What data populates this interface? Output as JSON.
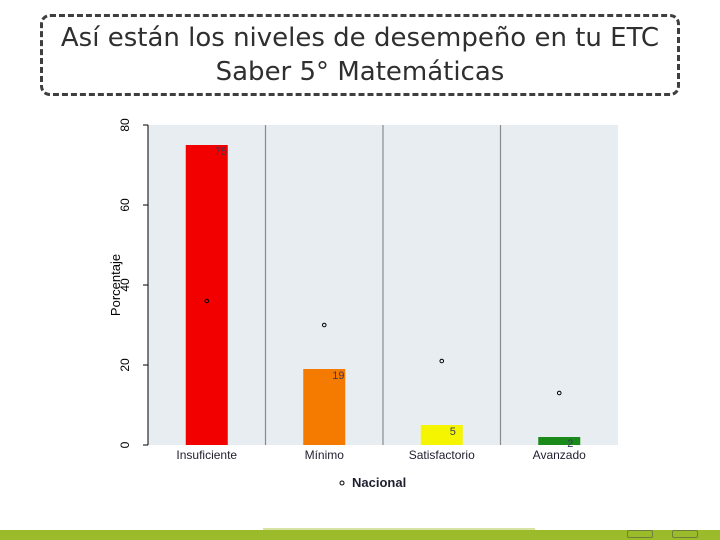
{
  "slide": {
    "title_line1": "Así están los niveles de desempeño en tu ETC",
    "title_line2": "Saber 5° Matemáticas"
  },
  "chart_data": {
    "type": "bar",
    "categories": [
      "Insuficiente",
      "Mínimo",
      "Satisfactorio",
      "Avanzado"
    ],
    "series": [
      {
        "name": "",
        "values": [
          75,
          19,
          5,
          2
        ],
        "data_labels": [
          "75",
          "19",
          "5",
          "2"
        ]
      },
      {
        "name": "Nacional",
        "values": [
          36,
          30,
          21,
          13
        ]
      }
    ],
    "bar_colors": [
      "#f20000",
      "#f57a00",
      "#f5f500",
      "#1a8a1a"
    ],
    "marker_color": "#000000",
    "ylabel": "Porcentaje",
    "xlabel": "",
    "ylim": [
      0,
      80
    ],
    "yticks": [
      0,
      20,
      40,
      60,
      80
    ],
    "plot_background": "#e8edf2",
    "grid": "vertical separators between categories",
    "legend_label": "Nacional",
    "legend_position": "bottom-center"
  }
}
